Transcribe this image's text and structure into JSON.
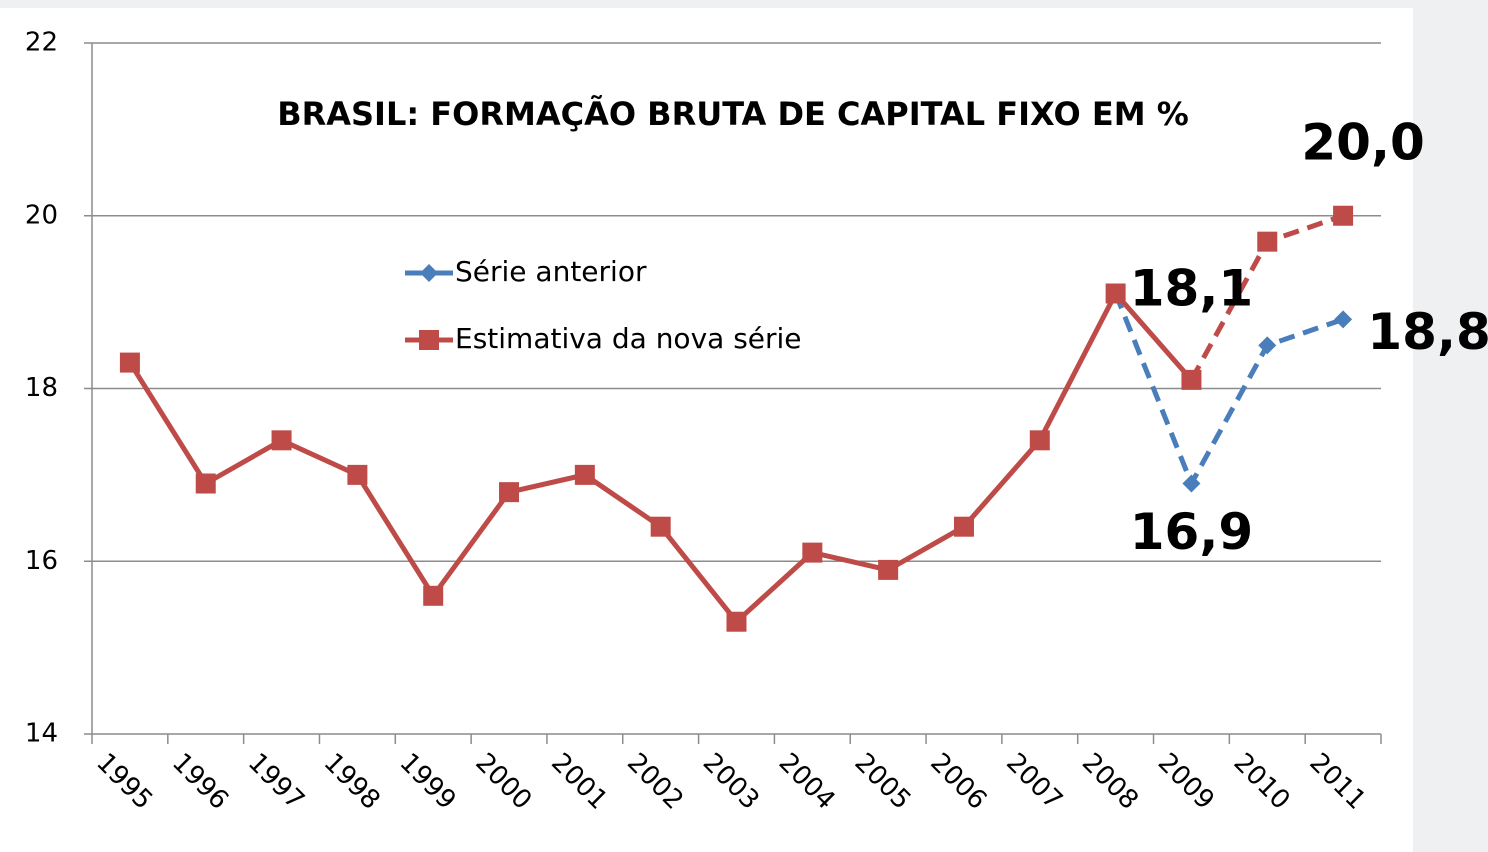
{
  "chart_data": {
    "type": "line",
    "title": "BRASIL: FORMAÇÃO BRUTA DE CAPITAL FIXO EM %",
    "categories": [
      "1995",
      "1996",
      "1997",
      "1998",
      "1999",
      "2000",
      "2001",
      "2002",
      "2003",
      "2004",
      "2005",
      "2006",
      "2007",
      "2008",
      "2009",
      "2010",
      "2011"
    ],
    "series": [
      {
        "name": "Série anterior",
        "color": "#4a7ebb",
        "marker": "diamond",
        "values": [
          null,
          null,
          null,
          null,
          null,
          null,
          null,
          null,
          null,
          null,
          null,
          null,
          null,
          19.1,
          16.9,
          18.5,
          18.8
        ],
        "value_labels": [
          null,
          null,
          null,
          null,
          null,
          null,
          null,
          null,
          null,
          null,
          null,
          null,
          null,
          null,
          "16,9",
          null,
          "18,8"
        ]
      },
      {
        "name": "Estimativa da nova série",
        "color": "#be4b48",
        "marker": "square",
        "values": [
          18.3,
          16.9,
          17.4,
          17.0,
          15.6,
          16.8,
          17.0,
          16.4,
          15.3,
          16.1,
          15.9,
          16.4,
          17.4,
          19.1,
          18.1,
          19.7,
          20.0
        ],
        "value_labels": [
          null,
          null,
          null,
          null,
          null,
          null,
          null,
          null,
          null,
          null,
          null,
          null,
          null,
          null,
          "18,1",
          null,
          "20,0"
        ]
      }
    ],
    "ylim": [
      14,
      22
    ],
    "yticks": [
      14,
      16,
      18,
      20,
      22
    ],
    "grid": true
  }
}
